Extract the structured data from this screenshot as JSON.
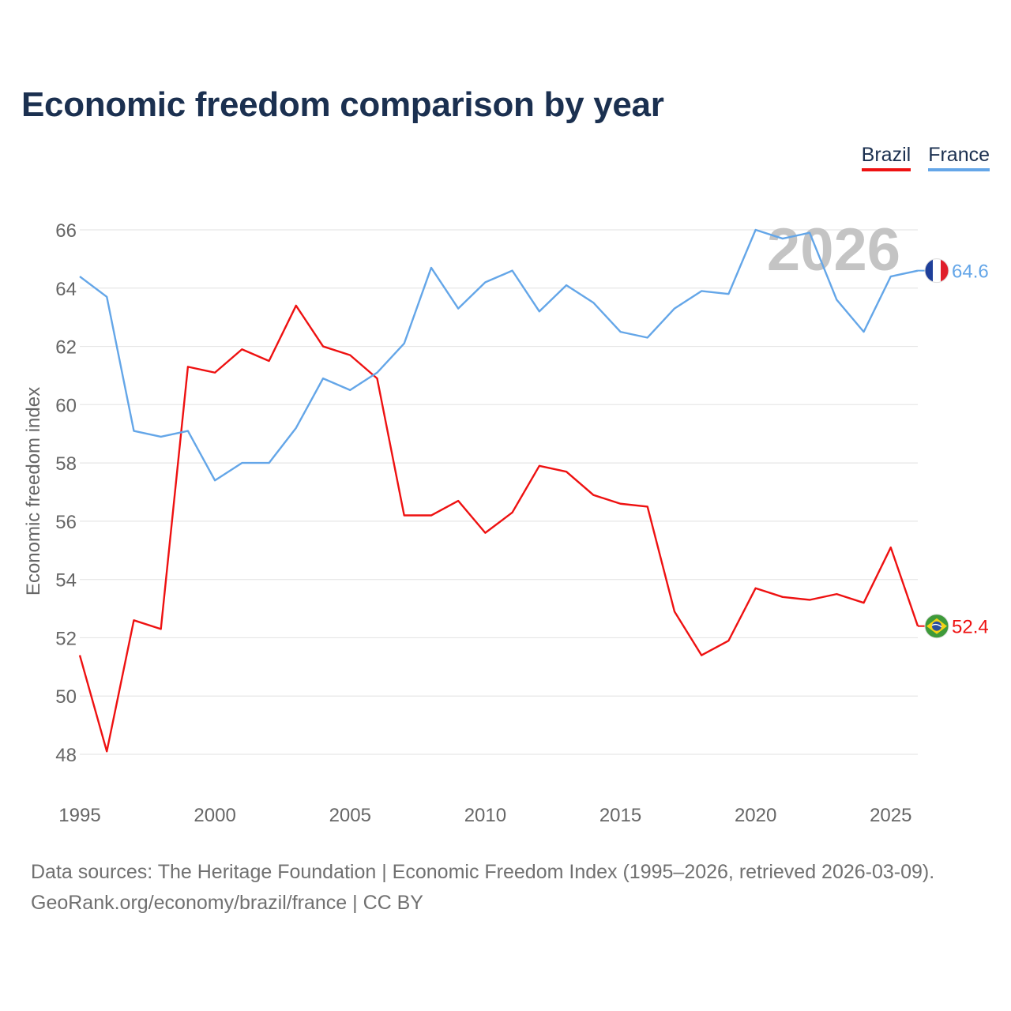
{
  "title": "Economic freedom comparison by year",
  "legend": {
    "brazil": "Brazil",
    "france": "France"
  },
  "footer": {
    "sources": "Data sources: The Heritage Foundation | Economic Freedom Index (1995–2026, retrieved 2026-03-09).",
    "credit": "GeoRank.org/economy/brazil/france | CC BY"
  },
  "colors": {
    "brazil": "#ee1111",
    "france": "#64a6e8",
    "grid": "#e6e6e6",
    "axis_text": "#666666",
    "year_watermark": "#c4c4c4"
  },
  "chart_data": {
    "type": "line",
    "title": "Economic freedom comparison by year",
    "xlabel": "",
    "ylabel": "Economic freedom index",
    "watermark": "2026",
    "x": [
      1995,
      1996,
      1997,
      1998,
      1999,
      2000,
      2001,
      2002,
      2003,
      2004,
      2005,
      2006,
      2007,
      2008,
      2009,
      2010,
      2011,
      2012,
      2013,
      2014,
      2015,
      2016,
      2017,
      2018,
      2019,
      2020,
      2021,
      2022,
      2023,
      2024,
      2025,
      2026
    ],
    "xticks": [
      "1995",
      "2000",
      "2005",
      "2010",
      "2015",
      "2020",
      "2025"
    ],
    "xlim": [
      1995,
      2026
    ],
    "yticks": [
      "48",
      "50",
      "52",
      "54",
      "56",
      "58",
      "60",
      "62",
      "64",
      "66"
    ],
    "ylim": [
      47,
      66
    ],
    "grid": true,
    "legend_position": "top-right",
    "series": [
      {
        "name": "Brazil",
        "color": "#ee1111",
        "end_label": "52.4",
        "values": [
          51.4,
          48.1,
          52.6,
          52.3,
          61.3,
          61.1,
          61.9,
          61.5,
          63.4,
          62.0,
          61.7,
          60.9,
          56.2,
          56.2,
          56.7,
          55.6,
          56.3,
          57.9,
          57.7,
          56.9,
          56.6,
          56.5,
          52.9,
          51.4,
          51.9,
          53.7,
          53.4,
          53.3,
          53.5,
          53.2,
          55.1,
          52.4
        ]
      },
      {
        "name": "France",
        "color": "#64a6e8",
        "end_label": "64.6",
        "values": [
          64.4,
          63.7,
          59.1,
          58.9,
          59.1,
          57.4,
          58.0,
          58.0,
          59.2,
          60.9,
          60.5,
          61.1,
          62.1,
          64.7,
          63.3,
          64.2,
          64.6,
          63.2,
          64.1,
          63.5,
          62.5,
          62.3,
          63.3,
          63.9,
          63.8,
          66.0,
          65.7,
          65.9,
          63.6,
          62.5,
          64.4,
          64.6
        ]
      }
    ]
  }
}
